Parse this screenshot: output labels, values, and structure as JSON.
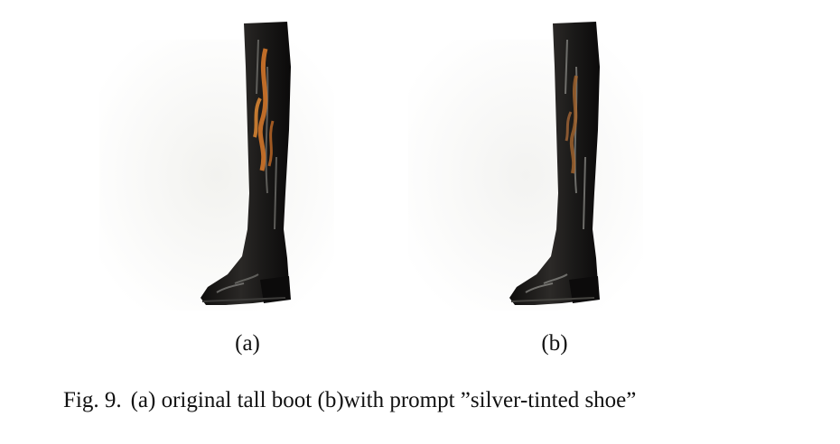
{
  "figure": {
    "panels": [
      {
        "label": "(a)",
        "depicts": "boot-photo-original"
      },
      {
        "label": "(b)",
        "depicts": "boot-photo-edited"
      }
    ],
    "caption": {
      "number": "Fig. 9.",
      "text": "(a) original tall boot (b)with prompt ”silver-tinted shoe”"
    },
    "colors": {
      "boot_body": "#1b1a19",
      "boot_highlight": "#7a7a76",
      "flame_a": "#d2762a",
      "flame_b": "#a8662e",
      "background_haze": "#f4f4f2"
    }
  }
}
